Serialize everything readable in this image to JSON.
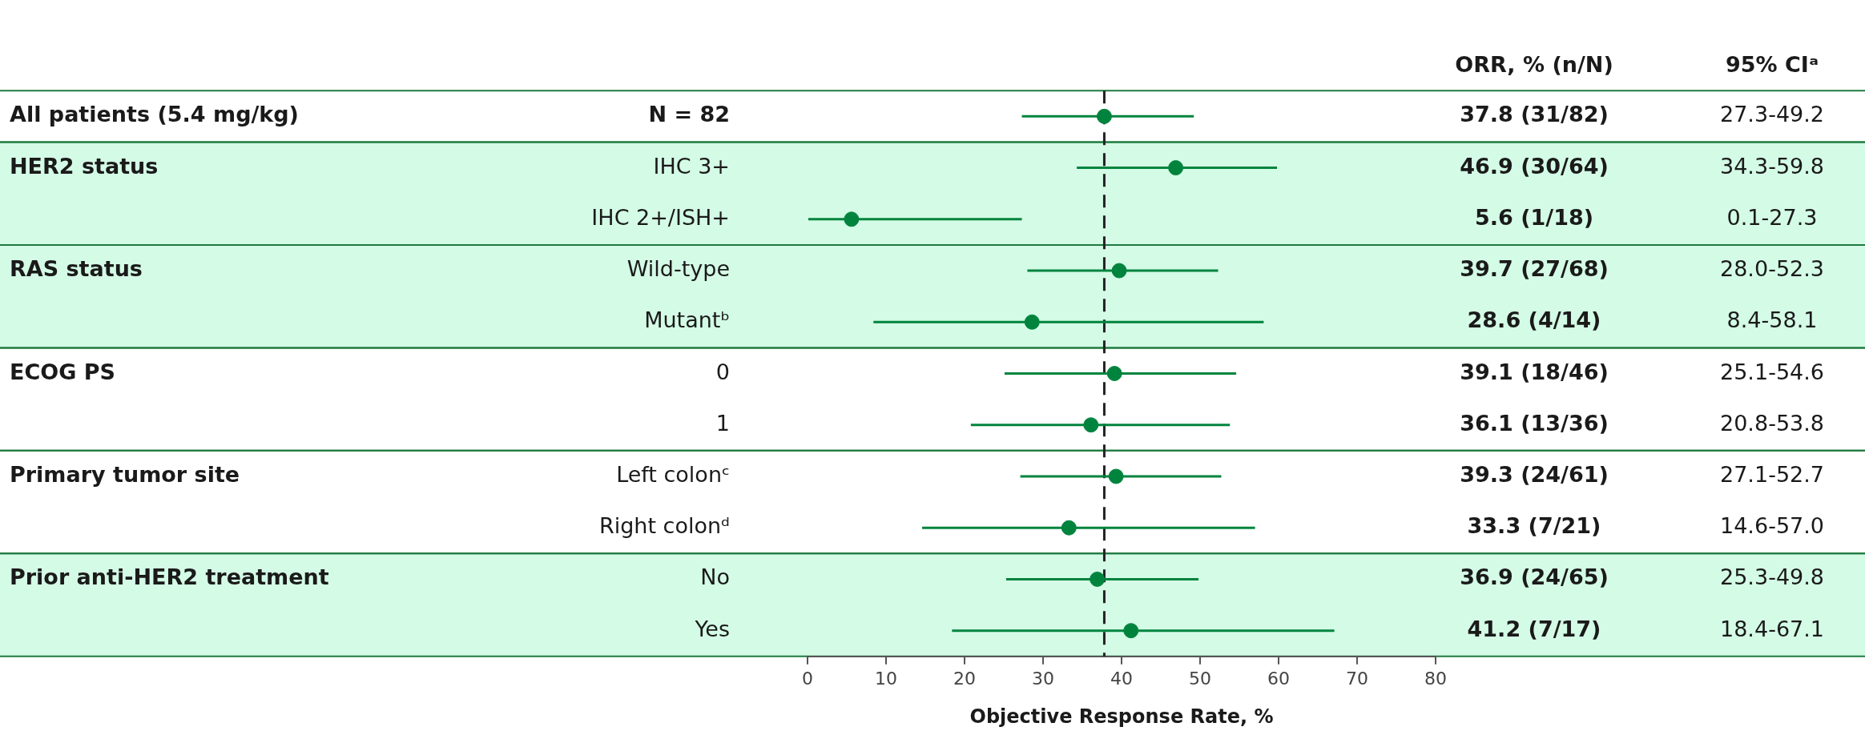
{
  "chart_data": {
    "type": "scatter",
    "orientation": "horizontal",
    "categories": [
      "N = 82",
      "IHC 3+",
      "IHC 2+/ISH+",
      "Wild-type",
      "Mutantᵇ",
      "0",
      "1",
      "Left colonᶜ",
      "Right colonᵈ",
      "No",
      "Yes"
    ],
    "values": [
      37.8,
      46.9,
      5.6,
      39.7,
      28.6,
      39.1,
      36.1,
      39.3,
      33.3,
      36.9,
      41.2
    ],
    "errors": [
      [
        27.3,
        49.2
      ],
      [
        34.3,
        59.8
      ],
      [
        0.1,
        27.3
      ],
      [
        28.0,
        52.3
      ],
      [
        8.4,
        58.1
      ],
      [
        25.1,
        54.6
      ],
      [
        20.8,
        53.8
      ],
      [
        27.1,
        52.7
      ],
      [
        14.6,
        57.0
      ],
      [
        25.3,
        49.8
      ],
      [
        18.4,
        67.1
      ]
    ],
    "value_labels": [
      "37.8 (31/82)",
      "46.9 (30/64)",
      "5.6 (1/18)",
      "39.7 (27/68)",
      "28.6 (4/14)",
      "39.1 (18/46)",
      "36.1 (13/36)",
      "39.3 (24/61)",
      "33.3 (7/21)",
      "36.9 (24/65)",
      "41.2 (7/17)"
    ],
    "color": "#00843d",
    "marker": "circle",
    "xlim": [
      0,
      80
    ],
    "xticks": [
      0,
      10,
      20,
      30,
      40,
      50,
      60,
      70,
      80
    ],
    "xlabel": "Objective Response Rate, %",
    "ref_lines": [
      {
        "axis": "x",
        "value": 37.8,
        "color": "#222222",
        "line_style": "dashed"
      }
    ],
    "y2_categories": [
      "All patients (5.4 mg/kg)",
      "HER2 status",
      null,
      "RAS status",
      null,
      "ECOG PS",
      null,
      "Primary tumor site",
      null,
      "Prior anti-HER2 treatment",
      null
    ],
    "bands": [
      {
        "axis": "y",
        "from": "IHC 3+",
        "to": "IHC 2+/ISH+",
        "color": "#d4fbe6"
      },
      {
        "axis": "y",
        "from": "Wild-type",
        "to": "Mutantᵇ",
        "color": "#d4fbe6"
      },
      {
        "axis": "y",
        "from": "No",
        "to": "Yes",
        "color": "#d4fbe6"
      }
    ],
    "annotations": [
      "ORR, % (n/N)",
      "95% CIᵃ",
      "27.3-49.2",
      "34.3-59.8",
      "0.1-27.3",
      "28.0-52.3",
      "8.4-58.1",
      "25.1-54.6",
      "20.8-53.8",
      "27.1-52.7",
      "14.6-57.0",
      "25.3-49.8",
      "18.4-67.1"
    ],
    "grid": false,
    "legend": false
  }
}
